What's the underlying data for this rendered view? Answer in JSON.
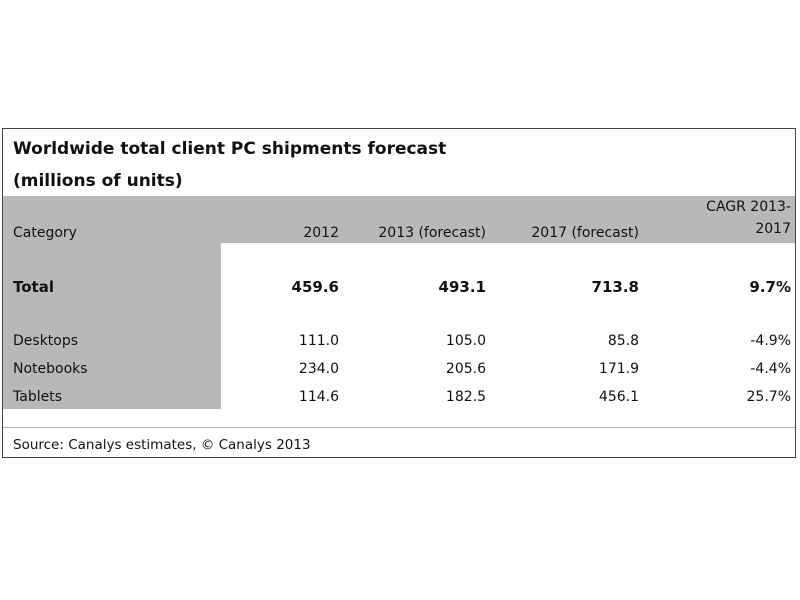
{
  "title": [
    "Worldwide total client PC shipments forecast",
    "(millions of units)"
  ],
  "table": {
    "header": [
      "Category",
      "2012",
      "2013 (forecast)",
      "2017 (forecast)",
      [
        "CAGR 2013-",
        "2017"
      ]
    ],
    "rows": [
      [
        "Total",
        "459.6",
        "493.1",
        "713.8",
        "9.7%"
      ],
      [
        "Desktops",
        "111.0",
        "105.0",
        "85.8",
        "-4.9%"
      ],
      [
        "Notebooks",
        "234.0",
        "205.6",
        "171.9",
        "-4.4%"
      ],
      [
        "Tablets",
        "114.6",
        "182.5",
        "456.1",
        "25.7%"
      ]
    ]
  },
  "source": "Source: Canalys estimates, © Canalys 2013"
}
